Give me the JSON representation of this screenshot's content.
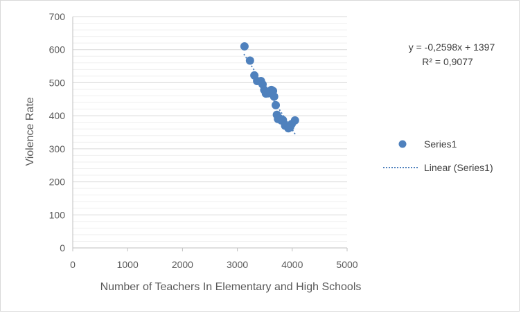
{
  "chart_data": {
    "type": "scatter",
    "xlabel": "Number of Teachers In Elementary and High Schools",
    "ylabel": "Violence Rate",
    "xlim": [
      0,
      5000
    ],
    "ylim": [
      0,
      700
    ],
    "x_ticks": [
      "0",
      "1000",
      "2000",
      "3000",
      "4000",
      "5000"
    ],
    "y_ticks": [
      "0",
      "100",
      "200",
      "300",
      "400",
      "500",
      "600",
      "700"
    ],
    "grid": "horizontal",
    "legend_position": "right",
    "series": [
      {
        "name": "Series1",
        "color": "#4f81bd",
        "x": [
          3130,
          3230,
          3310,
          3360,
          3430,
          3460,
          3490,
          3520,
          3560,
          3600,
          3620,
          3650,
          3670,
          3700,
          3720,
          3740,
          3770,
          3800,
          3830,
          3870,
          3930,
          3960,
          3990,
          4050
        ],
        "y": [
          610,
          567,
          522,
          505,
          505,
          495,
          478,
          467,
          468,
          470,
          478,
          475,
          458,
          432,
          403,
          390,
          392,
          386,
          387,
          370,
          362,
          365,
          375,
          386
        ]
      }
    ],
    "trendline": {
      "name": "Linear (Series1)",
      "type": "linear",
      "slope": -0.2598,
      "intercept": 1397,
      "x_range": [
        3120,
        4060
      ],
      "color": "#4f81bd",
      "equation_label": "y = -0,2598x + 1397",
      "r2_label": "R² = 0,9077"
    }
  }
}
